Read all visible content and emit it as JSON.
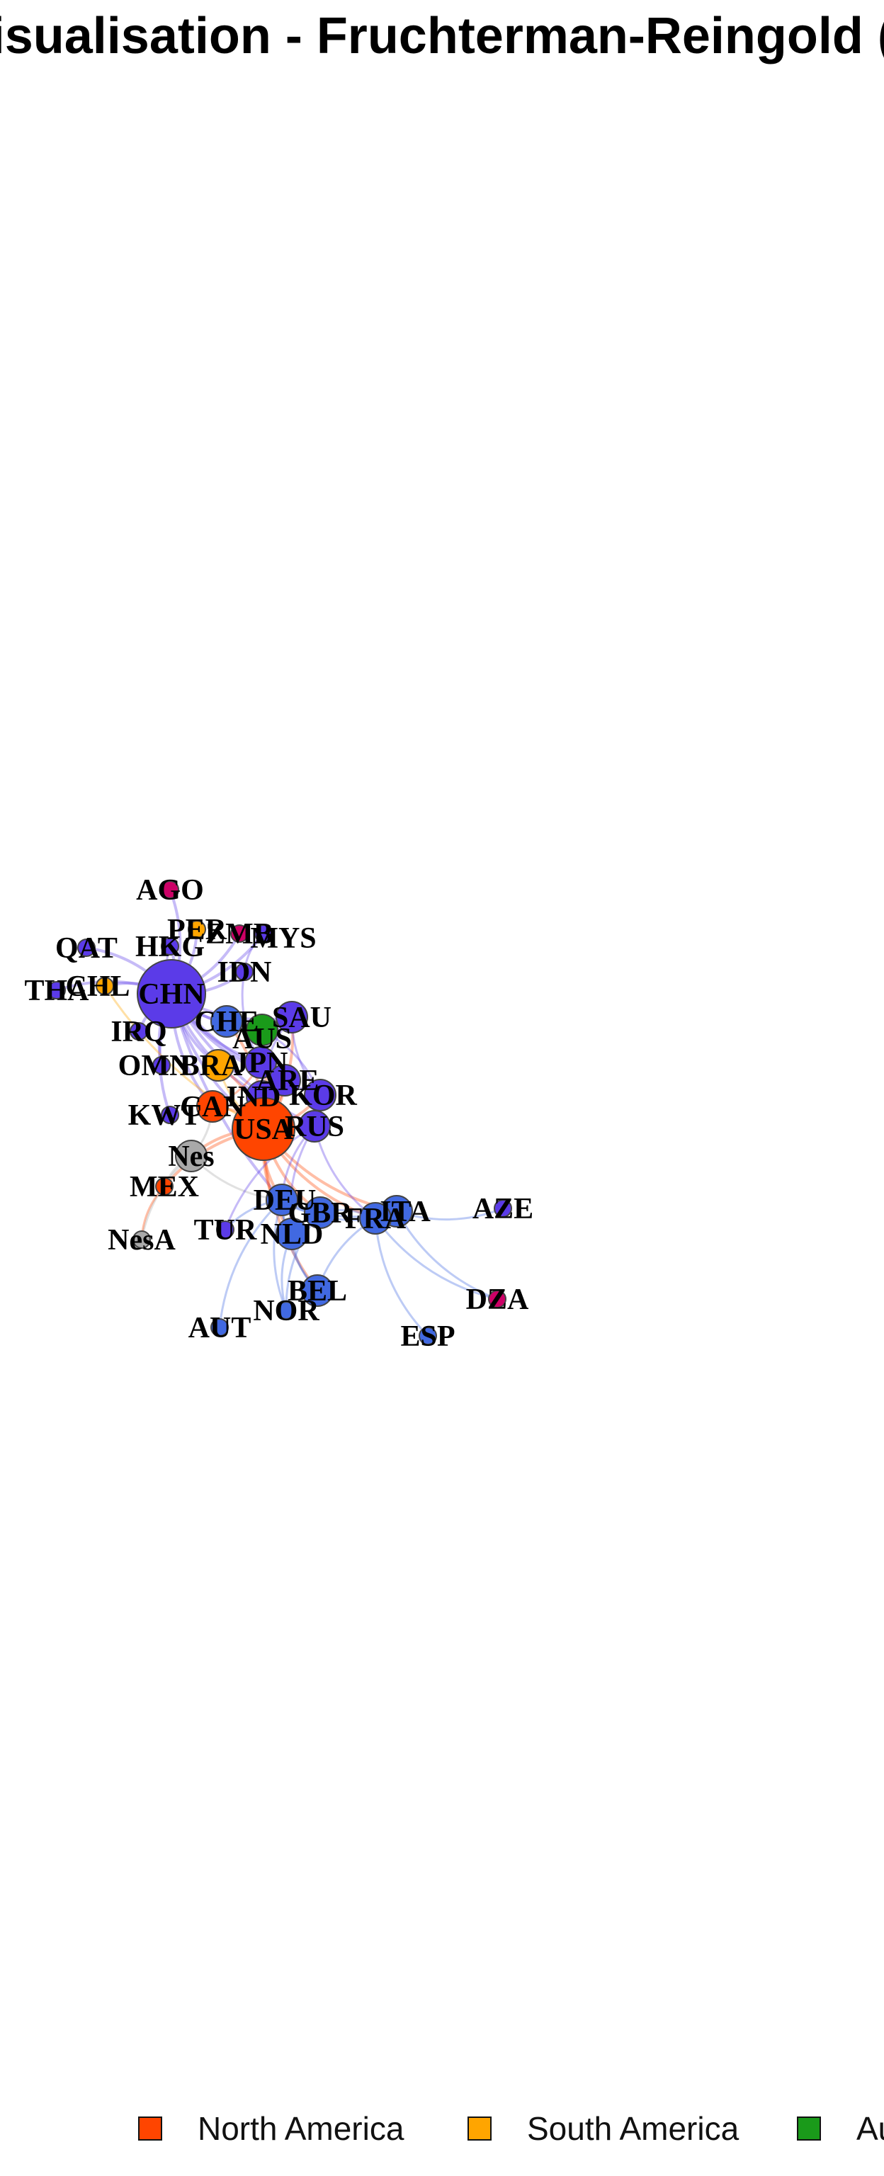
{
  "title": "Visualisation - Fruchterman-Reingold (improved)",
  "colors": {
    "north_america": "#FF4500",
    "south_america": "#FFA500",
    "australia": "#1A9A1A",
    "asia": "#5B3BE8",
    "africa": "#CC0066",
    "europe": "#4169E1",
    "other": "#A9A9A9"
  },
  "legend": [
    {
      "label": "North America",
      "color": "#FF4500"
    },
    {
      "label": "South America",
      "color": "#FFA500"
    },
    {
      "label": "Au",
      "color": "#1A9A1A"
    }
  ],
  "nodes": [
    {
      "id": "AGO",
      "group": "africa",
      "size": "s"
    },
    {
      "id": "PER",
      "group": "south_america",
      "size": "s"
    },
    {
      "id": "ZMB",
      "group": "africa",
      "size": "s"
    },
    {
      "id": "MYS",
      "group": "asia",
      "size": "s"
    },
    {
      "id": "QAT",
      "group": "asia",
      "size": "s"
    },
    {
      "id": "HKG",
      "group": "asia",
      "size": "s"
    },
    {
      "id": "IDN",
      "group": "asia",
      "size": "s"
    },
    {
      "id": "THA",
      "group": "asia",
      "size": "s"
    },
    {
      "id": "CHL",
      "group": "south_america",
      "size": "s"
    },
    {
      "id": "CHN",
      "group": "asia",
      "size": "xl"
    },
    {
      "id": "CHE",
      "group": "europe",
      "size": "m"
    },
    {
      "id": "SAU",
      "group": "asia",
      "size": "m"
    },
    {
      "id": "AUS",
      "group": "australia",
      "size": "m"
    },
    {
      "id": "IRQ",
      "group": "asia",
      "size": "s"
    },
    {
      "id": "OMN",
      "group": "asia",
      "size": "s"
    },
    {
      "id": "BRA",
      "group": "south_america",
      "size": "m"
    },
    {
      "id": "JPN",
      "group": "asia",
      "size": "m"
    },
    {
      "id": "ARE",
      "group": "asia",
      "size": "m"
    },
    {
      "id": "IND",
      "group": "asia",
      "size": "m"
    },
    {
      "id": "KOR",
      "group": "asia",
      "size": "m"
    },
    {
      "id": "KWT",
      "group": "asia",
      "size": "s"
    },
    {
      "id": "CAN",
      "group": "north_america",
      "size": "m"
    },
    {
      "id": "USA",
      "group": "north_america",
      "size": "l"
    },
    {
      "id": "RUS",
      "group": "asia",
      "size": "m"
    },
    {
      "id": "Nes",
      "group": "other",
      "size": "m"
    },
    {
      "id": "MEX",
      "group": "north_america",
      "size": "s"
    },
    {
      "id": "DEU",
      "group": "europe",
      "size": "m"
    },
    {
      "id": "GBR",
      "group": "europe",
      "size": "m"
    },
    {
      "id": "ITA",
      "group": "europe",
      "size": "m"
    },
    {
      "id": "FRA",
      "group": "europe",
      "size": "m"
    },
    {
      "id": "AZE",
      "group": "asia",
      "size": "s"
    },
    {
      "id": "TUR",
      "group": "asia",
      "size": "s"
    },
    {
      "id": "NLD",
      "group": "europe",
      "size": "m"
    },
    {
      "id": "NesA",
      "group": "other",
      "size": "s"
    },
    {
      "id": "BEL",
      "group": "europe",
      "size": "m"
    },
    {
      "id": "DZA",
      "group": "africa",
      "size": "s"
    },
    {
      "id": "NOR",
      "group": "europe",
      "size": "s"
    },
    {
      "id": "AUT",
      "group": "europe",
      "size": "s"
    },
    {
      "id": "ESP",
      "group": "europe",
      "size": "s"
    }
  ],
  "edges": [
    [
      "CHN",
      "AGO"
    ],
    [
      "CHN",
      "PER"
    ],
    [
      "CHN",
      "ZMB"
    ],
    [
      "CHN",
      "MYS"
    ],
    [
      "CHN",
      "QAT"
    ],
    [
      "CHN",
      "HKG"
    ],
    [
      "CHN",
      "IDN"
    ],
    [
      "CHN",
      "THA"
    ],
    [
      "CHN",
      "CHL"
    ],
    [
      "CHN",
      "CHE"
    ],
    [
      "CHN",
      "SAU"
    ],
    [
      "CHN",
      "AUS"
    ],
    [
      "CHN",
      "IRQ"
    ],
    [
      "CHN",
      "OMN"
    ],
    [
      "CHN",
      "BRA"
    ],
    [
      "CHN",
      "JPN"
    ],
    [
      "CHN",
      "ARE"
    ],
    [
      "CHN",
      "IND"
    ],
    [
      "CHN",
      "KOR"
    ],
    [
      "CHN",
      "KWT"
    ],
    [
      "CHN",
      "CAN"
    ],
    [
      "CHN",
      "USA"
    ],
    [
      "CHN",
      "RUS"
    ],
    [
      "CHN",
      "DEU"
    ],
    [
      "USA",
      "CAN"
    ],
    [
      "USA",
      "MEX"
    ],
    [
      "USA",
      "Nes"
    ],
    [
      "USA",
      "DEU"
    ],
    [
      "USA",
      "GBR"
    ],
    [
      "USA",
      "FRA"
    ],
    [
      "USA",
      "NLD"
    ],
    [
      "USA",
      "JPN"
    ],
    [
      "USA",
      "KOR"
    ],
    [
      "USA",
      "IND"
    ],
    [
      "USA",
      "BRA"
    ],
    [
      "USA",
      "ITA"
    ],
    [
      "USA",
      "SAU"
    ],
    [
      "USA",
      "ARE"
    ],
    [
      "USA",
      "CHE"
    ],
    [
      "USA",
      "BEL"
    ],
    [
      "Nes",
      "MEX"
    ],
    [
      "Nes",
      "DEU"
    ],
    [
      "Nes",
      "CAN"
    ],
    [
      "Nes",
      "NesA"
    ],
    [
      "MEX",
      "NesA"
    ],
    [
      "DEU",
      "GBR"
    ],
    [
      "DEU",
      "NLD"
    ],
    [
      "DEU",
      "FRA"
    ],
    [
      "DEU",
      "BEL"
    ],
    [
      "DEU",
      "ITA"
    ],
    [
      "DEU",
      "AUT"
    ],
    [
      "DEU",
      "NOR"
    ],
    [
      "DEU",
      "TUR"
    ],
    [
      "NLD",
      "BEL"
    ],
    [
      "NLD",
      "NOR"
    ],
    [
      "FRA",
      "BEL"
    ],
    [
      "FRA",
      "ITA"
    ],
    [
      "FRA",
      "ESP"
    ],
    [
      "FRA",
      "GBR"
    ],
    [
      "GBR",
      "NLD"
    ],
    [
      "GBR",
      "NOR"
    ],
    [
      "ITA",
      "AZE"
    ],
    [
      "ITA",
      "DZA"
    ],
    [
      "FRA",
      "DZA"
    ],
    [
      "RUS",
      "FRA"
    ],
    [
      "RUS",
      "NLD"
    ],
    [
      "RUS",
      "DEU"
    ],
    [
      "RUS",
      "TUR"
    ],
    [
      "JPN",
      "AUS"
    ],
    [
      "KOR",
      "AUS"
    ],
    [
      "IND",
      "ARE"
    ],
    [
      "SAU",
      "JPN"
    ],
    [
      "SAU",
      "KOR"
    ],
    [
      "SAU",
      "IND"
    ],
    [
      "IDN",
      "JPN"
    ],
    [
      "MYS",
      "IDN"
    ],
    [
      "HKG",
      "CHN"
    ],
    [
      "CAN",
      "JPN"
    ],
    [
      "BRA",
      "USA"
    ],
    [
      "CHL",
      "USA"
    ]
  ]
}
